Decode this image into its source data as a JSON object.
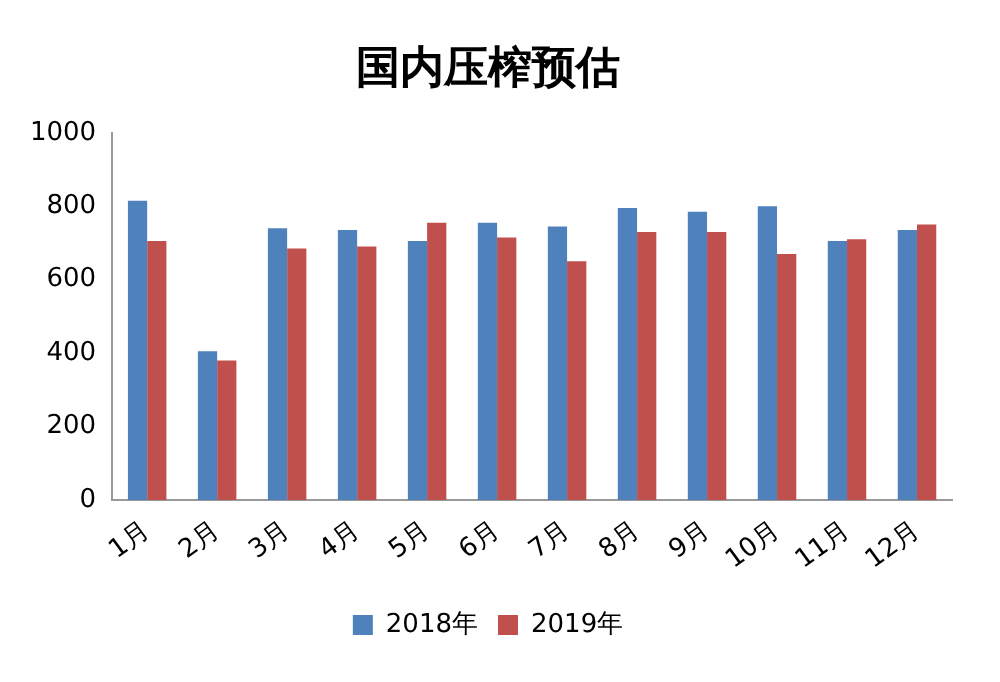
{
  "chart_data": {
    "type": "bar",
    "title": "国内压榨预估",
    "categories": [
      "1月",
      "2月",
      "3月",
      "4月",
      "5月",
      "6月",
      "7月",
      "8月",
      "9月",
      "10月",
      "11月",
      "12月"
    ],
    "series": [
      {
        "name": "2018年",
        "color": "#4f81bd",
        "values": [
          815,
          405,
          740,
          735,
          705,
          755,
          745,
          795,
          785,
          800,
          705,
          735
        ]
      },
      {
        "name": "2019年",
        "color": "#c0504d",
        "values": [
          705,
          380,
          685,
          690,
          755,
          715,
          650,
          730,
          730,
          670,
          710,
          750
        ]
      }
    ],
    "ylim": [
      0,
      1000
    ],
    "yticks": [
      0,
      200,
      400,
      600,
      800,
      1000
    ],
    "grid": false,
    "legend": "bottom"
  }
}
